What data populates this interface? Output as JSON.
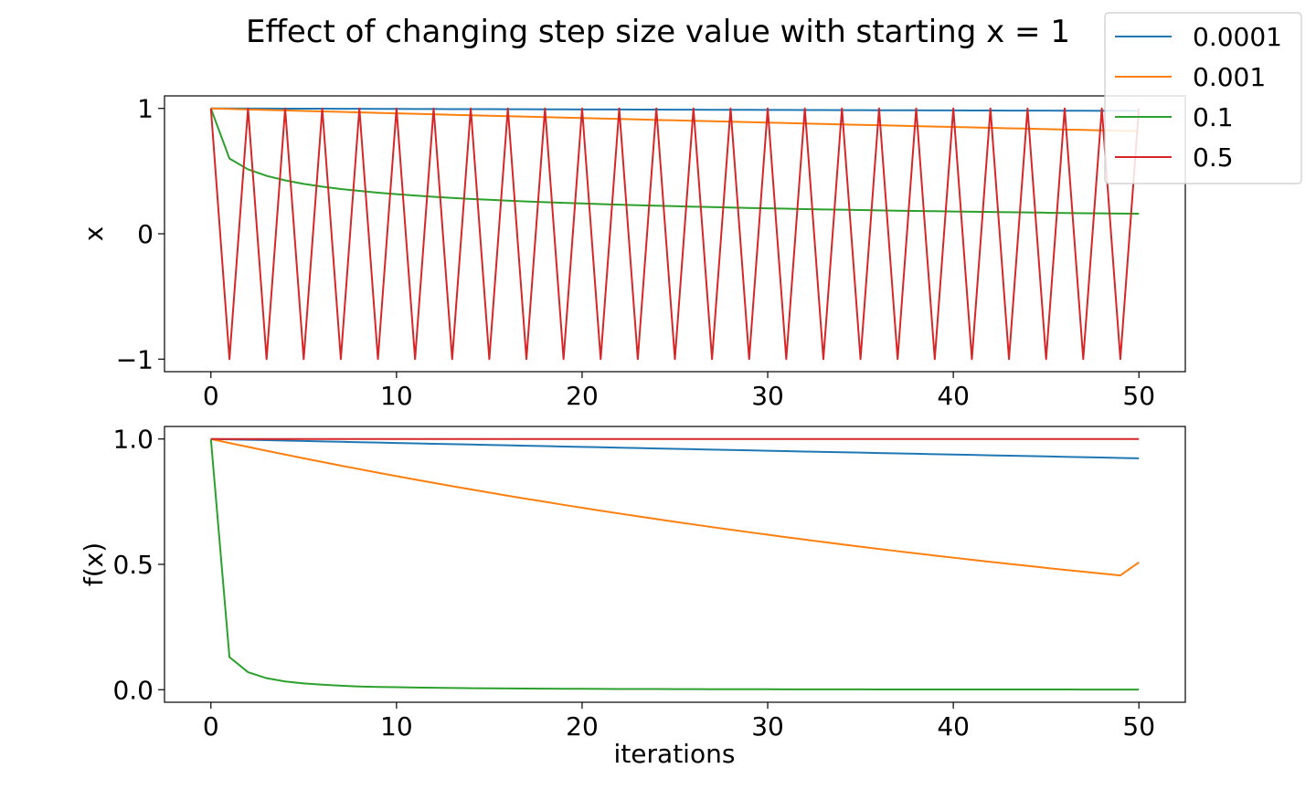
{
  "title": "Effect of changing step size value with starting x = 1",
  "legend": {
    "placement": "top-right",
    "entries": [
      {
        "label": "0.0001",
        "color": "#1f77b4"
      },
      {
        "label": "0.001",
        "color": "#ff7f0e"
      },
      {
        "label": "0.1",
        "color": "#2ca02c"
      },
      {
        "label": "0.5",
        "color": "#d62728"
      }
    ]
  },
  "chart_data": [
    {
      "type": "line",
      "title": "",
      "xlabel": "",
      "ylabel": "x",
      "xlim": [
        -2.5,
        52.5
      ],
      "ylim": [
        -1.1,
        1.1
      ],
      "x_ticks": [
        0,
        10,
        20,
        30,
        40,
        50
      ],
      "x_tick_labels": [
        "0",
        "10",
        "20",
        "30",
        "40",
        "50"
      ],
      "y_ticks": [
        -1,
        0,
        1
      ],
      "y_tick_labels": [
        "−1",
        "0",
        "1"
      ],
      "grid": false,
      "series": [
        {
          "name": "0.0001",
          "color": "#1f77b4",
          "x_range": [
            0,
            50
          ],
          "y": [
            1.0,
            0.9996,
            0.9992,
            0.9988,
            0.9984,
            0.998,
            0.9976,
            0.9972,
            0.9968,
            0.99641,
            0.99601,
            0.99561,
            0.99521,
            0.99482,
            0.99442,
            0.99402,
            0.99362,
            0.99323,
            0.99283,
            0.99244,
            0.99204,
            0.99164,
            0.99125,
            0.99085,
            0.99046,
            0.99006,
            0.98967,
            0.98927,
            0.98888,
            0.98848,
            0.98809,
            0.98769,
            0.9873,
            0.9869,
            0.98651,
            0.98612,
            0.98572,
            0.98533,
            0.98494,
            0.98454,
            0.98415,
            0.98376,
            0.98337,
            0.98297,
            0.98258,
            0.98219,
            0.9818,
            0.9814,
            0.98101,
            0.98062,
            0.98023
          ]
        },
        {
          "name": "0.001",
          "color": "#ff7f0e",
          "x_range": [
            0,
            50
          ],
          "y": [
            1.0,
            0.996,
            0.99202,
            0.98805,
            0.9841,
            0.98016,
            0.97624,
            0.97234,
            0.96845,
            0.96458,
            0.96072,
            0.95688,
            0.95305,
            0.94924,
            0.94544,
            0.94166,
            0.93789,
            0.93414,
            0.9304,
            0.92668,
            0.92298,
            0.91928,
            0.91561,
            0.91195,
            0.9083,
            0.90467,
            0.90105,
            0.89744,
            0.89385,
            0.89028,
            0.88672,
            0.88317,
            0.87964,
            0.87612,
            0.87262,
            0.86913,
            0.86565,
            0.86219,
            0.85874,
            0.8553,
            0.85188,
            0.84847,
            0.84508,
            0.8417,
            0.83833,
            0.83498,
            0.83164,
            0.82831,
            0.825,
            0.8217,
            0.81841
          ]
        },
        {
          "name": "0.1",
          "color": "#2ca02c",
          "x_range": [
            0,
            50
          ],
          "y": [
            1.0,
            0.6,
            0.514,
            0.462,
            0.426,
            0.398,
            0.376,
            0.357,
            0.342,
            0.328,
            0.316,
            0.305,
            0.295,
            0.286,
            0.278,
            0.271,
            0.264,
            0.258,
            0.252,
            0.247,
            0.242,
            0.237,
            0.232,
            0.228,
            0.224,
            0.22,
            0.216,
            0.213,
            0.209,
            0.206,
            0.203,
            0.2,
            0.197,
            0.194,
            0.192,
            0.189,
            0.187,
            0.184,
            0.182,
            0.18,
            0.178,
            0.176,
            0.174,
            0.172,
            0.17,
            0.168,
            0.166,
            0.164,
            0.163,
            0.161,
            0.16
          ]
        },
        {
          "name": "0.5",
          "color": "#d62728",
          "x_range": [
            0,
            50
          ],
          "y": [
            1,
            -1,
            1,
            -1,
            1,
            -1,
            1,
            -1,
            1,
            -1,
            1,
            -1,
            1,
            -1,
            1,
            -1,
            1,
            -1,
            1,
            -1,
            1,
            -1,
            1,
            -1,
            1,
            -1,
            1,
            -1,
            1,
            -1,
            1,
            -1,
            1,
            -1,
            1,
            -1,
            1,
            -1,
            1,
            -1,
            1,
            -1,
            1,
            -1,
            1,
            -1,
            1,
            -1,
            1,
            -1,
            1
          ]
        }
      ]
    },
    {
      "type": "line",
      "title": "",
      "xlabel": "iterations",
      "ylabel": "f(x)",
      "xlim": [
        -2.5,
        52.5
      ],
      "ylim": [
        -0.05,
        1.05
      ],
      "x_ticks": [
        0,
        10,
        20,
        30,
        40,
        50
      ],
      "x_tick_labels": [
        "0",
        "10",
        "20",
        "30",
        "40",
        "50"
      ],
      "y_ticks": [
        0,
        0.5,
        1
      ],
      "y_tick_labels": [
        "0.0",
        "0.5",
        "1.0"
      ],
      "grid": false,
      "series": [
        {
          "name": "0.0001",
          "color": "#1f77b4",
          "x_range": [
            0,
            50
          ],
          "y": [
            1.0,
            0.9984,
            0.99681,
            0.99521,
            0.99362,
            0.99203,
            0.99045,
            0.98886,
            0.98728,
            0.9857,
            0.98413,
            0.98255,
            0.98098,
            0.97941,
            0.97784,
            0.97628,
            0.97472,
            0.97316,
            0.9716,
            0.97005,
            0.9685,
            0.96695,
            0.9654,
            0.96386,
            0.96232,
            0.96078,
            0.95924,
            0.95771,
            0.95617,
            0.95464,
            0.95312,
            0.95159,
            0.95007,
            0.94855,
            0.94703,
            0.94552,
            0.944,
            0.94249,
            0.94099,
            0.93948,
            0.93798,
            0.93648,
            0.93498,
            0.93348,
            0.93199,
            0.9305,
            0.92901,
            0.92752,
            0.92604,
            0.92456,
            0.92308
          ]
        },
        {
          "name": "0.001",
          "color": "#ff7f0e",
          "x_range": [
            0,
            50
          ],
          "y": [
            1.0,
            0.98409,
            0.96845,
            0.95305,
            0.93789,
            0.92298,
            0.9083,
            0.89385,
            0.87964,
            0.86565,
            0.85188,
            0.83833,
            0.825,
            0.81188,
            0.79897,
            0.78626,
            0.77376,
            0.76145,
            0.74934,
            0.73742,
            0.7257,
            0.71416,
            0.7028,
            0.69162,
            0.68062,
            0.6698,
            0.65914,
            0.64866,
            0.63835,
            0.62819,
            0.6182,
            0.60837,
            0.5987,
            0.58918,
            0.57981,
            0.57059,
            0.56151,
            0.55258,
            0.5438,
            0.53515,
            0.52664,
            0.51826,
            0.51002,
            0.50191,
            0.49393,
            0.48607,
            0.47834,
            0.47074,
            0.46325,
            0.45588,
            0.508
          ]
        },
        {
          "name": "0.1",
          "color": "#2ca02c",
          "x_range": [
            0,
            50
          ],
          "y": [
            1.0,
            0.13,
            0.07,
            0.046,
            0.033,
            0.025,
            0.02,
            0.016,
            0.013,
            0.011,
            0.01,
            0.0087,
            0.0077,
            0.0068,
            0.0061,
            0.0055,
            0.005,
            0.0045,
            0.0041,
            0.0038,
            0.0035,
            0.0032,
            0.003,
            0.0028,
            0.0026,
            0.0024,
            0.0022,
            0.0021,
            0.002,
            0.0018,
            0.0017,
            0.0016,
            0.0015,
            0.0015,
            0.0014,
            0.0013,
            0.0012,
            0.0012,
            0.0011,
            0.0011,
            0.001,
            0.001,
            0.0009,
            0.0009,
            0.0008,
            0.0008,
            0.0008,
            0.0007,
            0.0007,
            0.0007,
            0.0006
          ]
        },
        {
          "name": "0.5",
          "color": "#d62728",
          "x_range": [
            0,
            50
          ],
          "y": [
            1,
            1,
            1,
            1,
            1,
            1,
            1,
            1,
            1,
            1,
            1,
            1,
            1,
            1,
            1,
            1,
            1,
            1,
            1,
            1,
            1,
            1,
            1,
            1,
            1,
            1,
            1,
            1,
            1,
            1,
            1,
            1,
            1,
            1,
            1,
            1,
            1,
            1,
            1,
            1,
            1,
            1,
            1,
            1,
            1,
            1,
            1,
            1,
            1,
            1,
            1
          ]
        }
      ]
    }
  ]
}
